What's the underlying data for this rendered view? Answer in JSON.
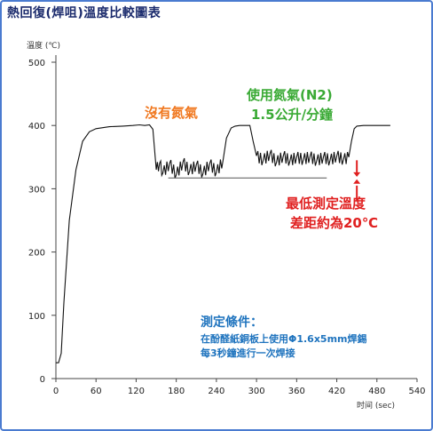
{
  "chart_data": {
    "type": "line",
    "title": "熱回復(焊咀)溫度比較圖表",
    "ylabel": "溫度 (℃)",
    "xlabel": "时间 (sec)",
    "xlim": [
      0,
      540
    ],
    "ylim": [
      0,
      500
    ],
    "xticks": [
      0,
      60,
      120,
      180,
      240,
      300,
      360,
      420,
      480,
      540
    ],
    "yticks": [
      0,
      100,
      200,
      300,
      400,
      500
    ],
    "series": [
      {
        "color": "#111111",
        "x": [
          0,
          4,
          8,
          12,
          20,
          30,
          40,
          50,
          60,
          80,
          100,
          115,
          125,
          133,
          140,
          145,
          150,
          155,
          160,
          170,
          180,
          190,
          200,
          210,
          220,
          230,
          240,
          250,
          255,
          262,
          268,
          275,
          282,
          290,
          295,
          300,
          310,
          320,
          330,
          340,
          350,
          360,
          370,
          380,
          390,
          400,
          410,
          420,
          430,
          438,
          442,
          446,
          450,
          460,
          470,
          480,
          490,
          500
        ],
        "y": [
          25,
          25,
          40,
          120,
          250,
          330,
          375,
          390,
          395,
          398,
          399,
          400,
          401,
          400,
          401,
          394,
          330,
          340,
          325,
          340,
          322,
          342,
          328,
          338,
          324,
          340,
          326,
          345,
          380,
          396,
          399,
          400,
          400,
          400,
          375,
          352,
          345,
          355,
          342,
          352,
          344,
          350,
          346,
          351,
          344,
          350,
          345,
          352,
          346,
          350,
          375,
          395,
          399,
          400,
          400,
          400,
          400,
          400
        ]
      }
    ],
    "reference_lines": [
      {
        "x_from": 168,
        "x_to": 405,
        "y": 317
      }
    ]
  },
  "annotations": {
    "no_nitrogen": "沒有氮氣",
    "nitrogen_line1": "使用氮氣(N2)",
    "nitrogen_line2": "1.5公升/分鐘",
    "min_diff_line1": "最低測定溫度",
    "min_diff_line2": "差距約為20℃",
    "conditions_title": "測定條件：",
    "conditions_line1": "在酚醛紙銅板上使用Φ1.6x5mm焊錫",
    "conditions_line2": "每3秒鐘進行一次焊接"
  },
  "colors": {
    "frame": "#4a7bd0",
    "title": "#1a2a6c",
    "orange": "#f07820",
    "green": "#3aaa35",
    "red": "#e02020",
    "blue": "#1e73be"
  }
}
